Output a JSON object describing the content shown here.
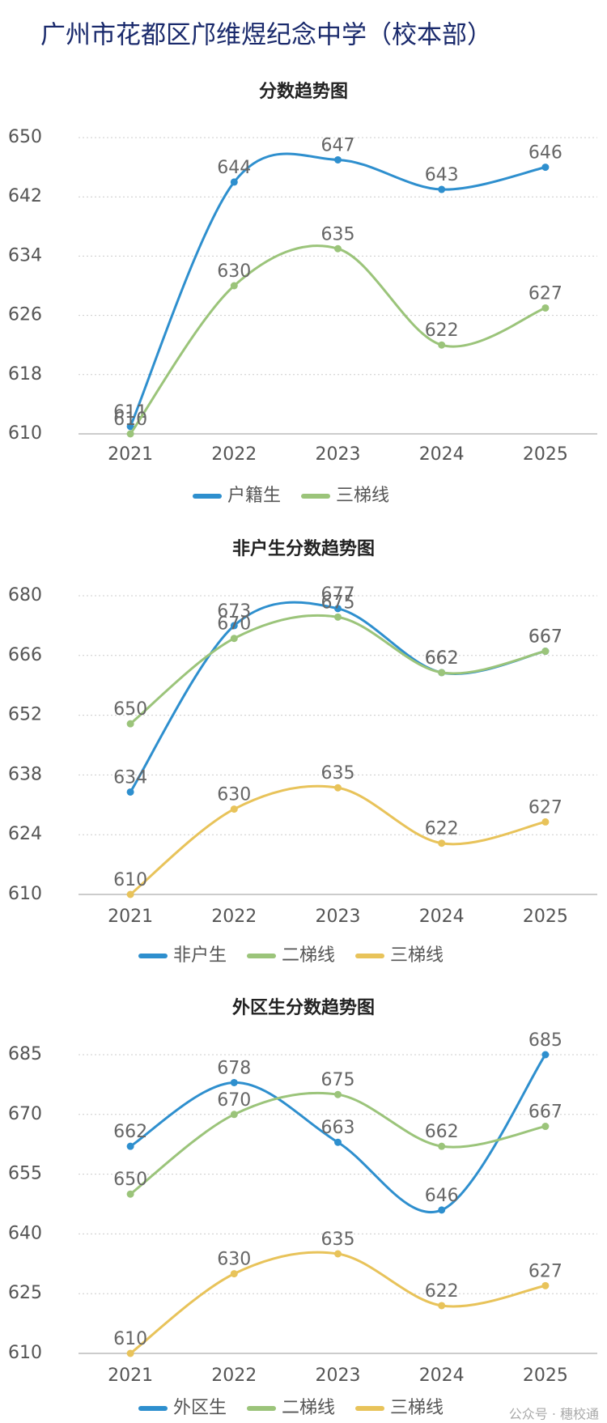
{
  "title": "广州市花都区邝维煜纪念中学（校本部）",
  "watermark": "公众号 · 穗校通",
  "chart_data": [
    {
      "type": "line",
      "title": "分数趋势图",
      "categories": [
        "2021",
        "2022",
        "2023",
        "2024",
        "2025"
      ],
      "ylim": [
        610,
        650
      ],
      "yticks": [
        610,
        618,
        626,
        634,
        642,
        650
      ],
      "grid": true,
      "series": [
        {
          "name": "户籍生",
          "color": "#2e8fce",
          "values": [
            611,
            644,
            647,
            643,
            646
          ]
        },
        {
          "name": "三梯线",
          "color": "#9bc47a",
          "values": [
            610,
            630,
            635,
            622,
            627
          ]
        }
      ]
    },
    {
      "type": "line",
      "title": "非户生分数趋势图",
      "categories": [
        "2021",
        "2022",
        "2023",
        "2024",
        "2025"
      ],
      "ylim": [
        610,
        680
      ],
      "yticks": [
        610,
        624,
        638,
        652,
        666,
        680
      ],
      "grid": true,
      "series": [
        {
          "name": "非户生",
          "color": "#2e8fce",
          "values": [
            634,
            673,
            677,
            662,
            667
          ]
        },
        {
          "name": "二梯线",
          "color": "#9bc47a",
          "values": [
            650,
            670,
            675,
            662,
            667
          ]
        },
        {
          "name": "三梯线",
          "color": "#e8c35a",
          "values": [
            610,
            630,
            635,
            622,
            627
          ]
        }
      ]
    },
    {
      "type": "line",
      "title": "外区生分数趋势图",
      "categories": [
        "2021",
        "2022",
        "2023",
        "2024",
        "2025"
      ],
      "ylim": [
        610,
        685
      ],
      "yticks": [
        610,
        625,
        640,
        655,
        670,
        685
      ],
      "grid": true,
      "series": [
        {
          "name": "外区生",
          "color": "#2e8fce",
          "values": [
            662,
            678,
            663,
            646,
            685
          ]
        },
        {
          "name": "二梯线",
          "color": "#9bc47a",
          "values": [
            650,
            670,
            675,
            662,
            667
          ]
        },
        {
          "name": "三梯线",
          "color": "#e8c35a",
          "values": [
            610,
            630,
            635,
            622,
            627
          ]
        }
      ]
    }
  ]
}
